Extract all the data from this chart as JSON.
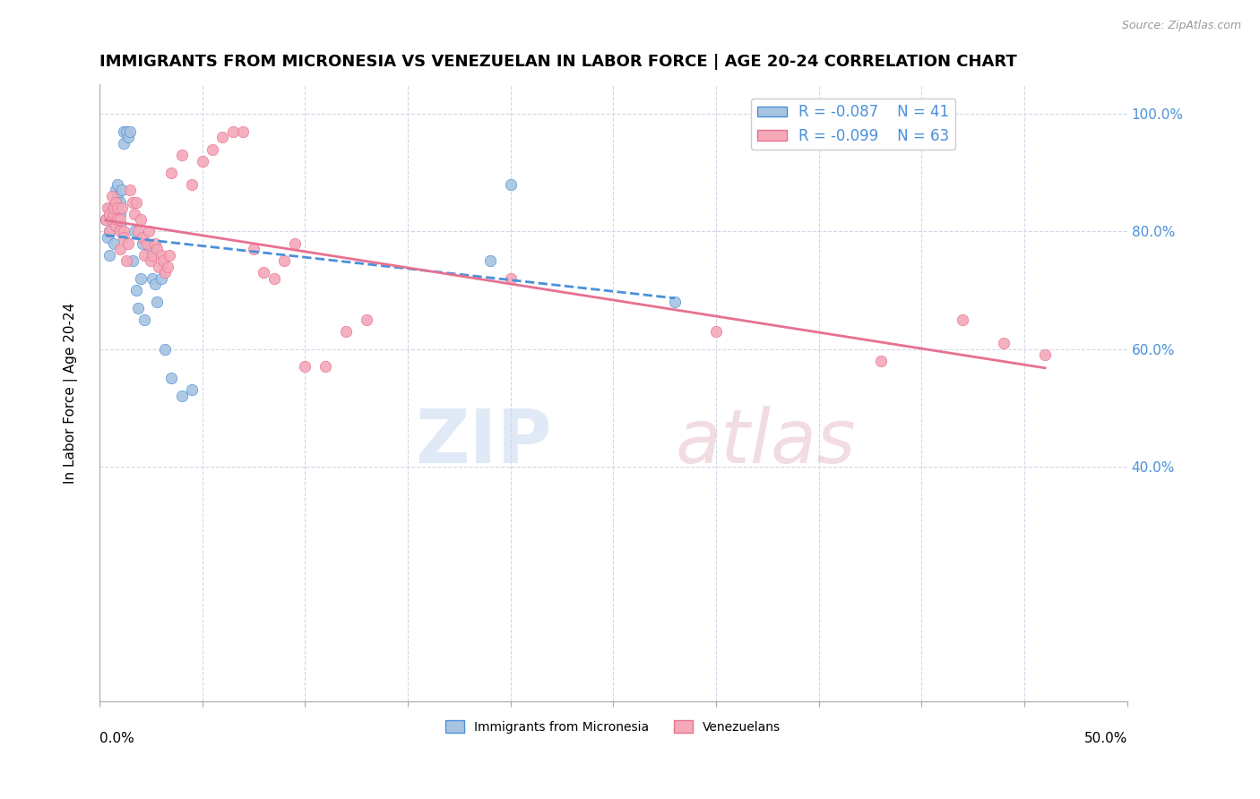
{
  "title": "IMMIGRANTS FROM MICRONESIA VS VENEZUELAN IN LABOR FORCE | AGE 20-24 CORRELATION CHART",
  "source": "Source: ZipAtlas.com",
  "ylabel": "In Labor Force | Age 20-24",
  "xlim": [
    0.0,
    0.5
  ],
  "ylim": [
    0.0,
    1.05
  ],
  "legend_r1": "R = -0.087",
  "legend_n1": "N = 41",
  "legend_r2": "R = -0.099",
  "legend_n2": "N = 63",
  "blue_fill": "#a8c4e0",
  "pink_fill": "#f4a8b8",
  "blue_edge": "#4a90d9",
  "pink_edge": "#e87090",
  "micronesia_x": [
    0.003,
    0.004,
    0.005,
    0.005,
    0.005,
    0.006,
    0.006,
    0.007,
    0.007,
    0.008,
    0.008,
    0.009,
    0.009,
    0.01,
    0.01,
    0.01,
    0.011,
    0.012,
    0.012,
    0.013,
    0.014,
    0.015,
    0.016,
    0.017,
    0.018,
    0.019,
    0.02,
    0.021,
    0.022,
    0.025,
    0.026,
    0.027,
    0.028,
    0.03,
    0.032,
    0.035,
    0.04,
    0.045,
    0.19,
    0.28,
    0.2
  ],
  "micronesia_y": [
    0.82,
    0.79,
    0.8,
    0.76,
    0.84,
    0.82,
    0.84,
    0.83,
    0.78,
    0.84,
    0.87,
    0.88,
    0.86,
    0.83,
    0.81,
    0.85,
    0.87,
    0.95,
    0.97,
    0.97,
    0.96,
    0.97,
    0.75,
    0.8,
    0.7,
    0.67,
    0.72,
    0.78,
    0.65,
    0.77,
    0.72,
    0.71,
    0.68,
    0.72,
    0.6,
    0.55,
    0.52,
    0.53,
    0.75,
    0.68,
    0.88
  ],
  "venezuelan_x": [
    0.003,
    0.004,
    0.005,
    0.005,
    0.006,
    0.006,
    0.007,
    0.007,
    0.008,
    0.008,
    0.009,
    0.009,
    0.01,
    0.01,
    0.01,
    0.011,
    0.012,
    0.012,
    0.013,
    0.014,
    0.015,
    0.016,
    0.017,
    0.018,
    0.019,
    0.02,
    0.021,
    0.022,
    0.023,
    0.024,
    0.025,
    0.026,
    0.027,
    0.028,
    0.029,
    0.03,
    0.031,
    0.032,
    0.033,
    0.034,
    0.035,
    0.04,
    0.045,
    0.05,
    0.055,
    0.06,
    0.065,
    0.07,
    0.075,
    0.08,
    0.085,
    0.09,
    0.095,
    0.1,
    0.11,
    0.12,
    0.13,
    0.2,
    0.3,
    0.38,
    0.42,
    0.44,
    0.46
  ],
  "venezuelan_y": [
    0.82,
    0.84,
    0.83,
    0.8,
    0.82,
    0.86,
    0.83,
    0.84,
    0.81,
    0.85,
    0.84,
    0.82,
    0.8,
    0.82,
    0.77,
    0.84,
    0.8,
    0.79,
    0.75,
    0.78,
    0.87,
    0.85,
    0.83,
    0.85,
    0.8,
    0.82,
    0.79,
    0.76,
    0.78,
    0.8,
    0.75,
    0.76,
    0.78,
    0.77,
    0.74,
    0.76,
    0.75,
    0.73,
    0.74,
    0.76,
    0.9,
    0.93,
    0.88,
    0.92,
    0.94,
    0.96,
    0.97,
    0.97,
    0.77,
    0.73,
    0.72,
    0.75,
    0.78,
    0.57,
    0.57,
    0.63,
    0.65,
    0.72,
    0.63,
    0.58,
    0.65,
    0.61,
    0.59
  ]
}
